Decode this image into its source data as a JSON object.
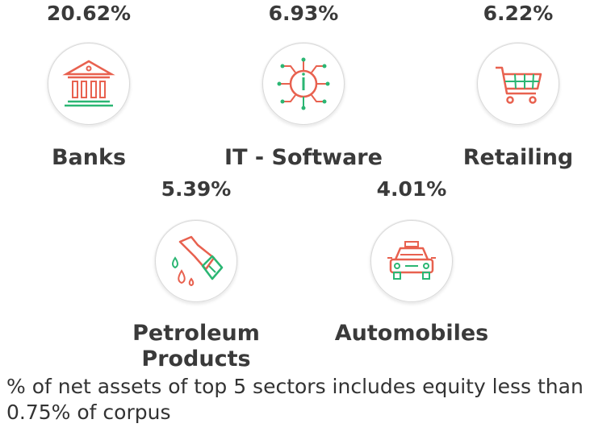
{
  "sectors": [
    {
      "percent": "20.62%",
      "name": "Banks",
      "icon": "bank-icon"
    },
    {
      "percent": "6.93%",
      "name": "IT - Software",
      "icon": "chip-icon"
    },
    {
      "percent": "6.22%",
      "name": "Retailing",
      "icon": "shopping-cart-icon"
    },
    {
      "percent": "5.39%",
      "name_line1": "Petroleum",
      "name_line2": "Products",
      "icon": "fuel-nozzle-icon"
    },
    {
      "percent": "4.01%",
      "name": "Automobiles",
      "icon": "car-icon"
    }
  ],
  "footnote": "% of net assets of top 5 sectors includes equity less than 0.75% of corpus",
  "colors": {
    "red": "#e8614f",
    "green": "#2bb673",
    "text": "#3a3a3a"
  }
}
